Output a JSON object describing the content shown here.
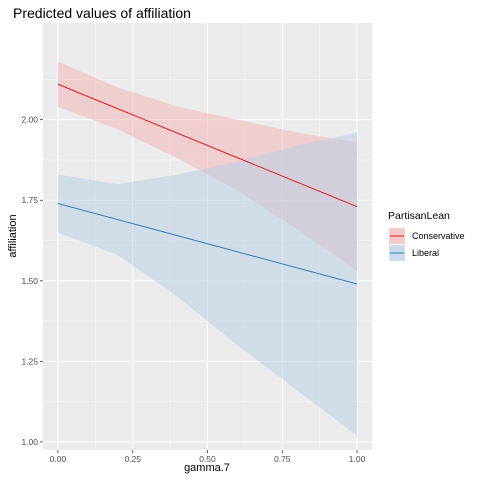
{
  "chart_data": {
    "type": "line",
    "title": "Predicted values of affiliation",
    "xlabel": "gamma.7",
    "ylabel": "affiliation",
    "xlim": [
      -0.05,
      1.05
    ],
    "ylim": [
      0.975,
      2.3
    ],
    "x_ticks": [
      0.0,
      0.25,
      0.5,
      0.75,
      1.0
    ],
    "x_tick_labels": [
      "0.00",
      "0.25",
      "0.50",
      "0.75",
      "1.00"
    ],
    "y_ticks": [
      1.0,
      1.25,
      1.5,
      1.75,
      2.0
    ],
    "y_tick_labels": [
      "1.00",
      "1.25",
      "1.50",
      "1.75",
      "2.00"
    ],
    "grid": true,
    "legend": {
      "title": "PartisanLean",
      "position": "right"
    },
    "series": [
      {
        "name": "Conservative",
        "color": "#e41a1c",
        "band_color": "#f2b6b8",
        "line": {
          "x": [
            0.0,
            1.0
          ],
          "y": [
            2.11,
            1.73
          ]
        },
        "band": {
          "x": [
            0.0,
            0.2,
            0.4,
            0.6,
            0.8,
            1.0
          ],
          "lower": [
            2.04,
            1.97,
            1.88,
            1.78,
            1.66,
            1.53
          ],
          "upper": [
            2.18,
            2.1,
            2.04,
            2.0,
            1.96,
            1.93
          ]
        }
      },
      {
        "name": "Liberal",
        "color": "#377eb8",
        "band_color": "#b9cfe4",
        "line": {
          "x": [
            0.0,
            1.0
          ],
          "y": [
            1.74,
            1.49
          ]
        },
        "band": {
          "x": [
            0.0,
            0.2,
            0.4,
            0.6,
            0.8,
            1.0
          ],
          "lower": [
            1.65,
            1.58,
            1.45,
            1.3,
            1.16,
            1.02
          ],
          "upper": [
            1.83,
            1.8,
            1.83,
            1.87,
            1.92,
            1.96
          ]
        }
      }
    ]
  }
}
